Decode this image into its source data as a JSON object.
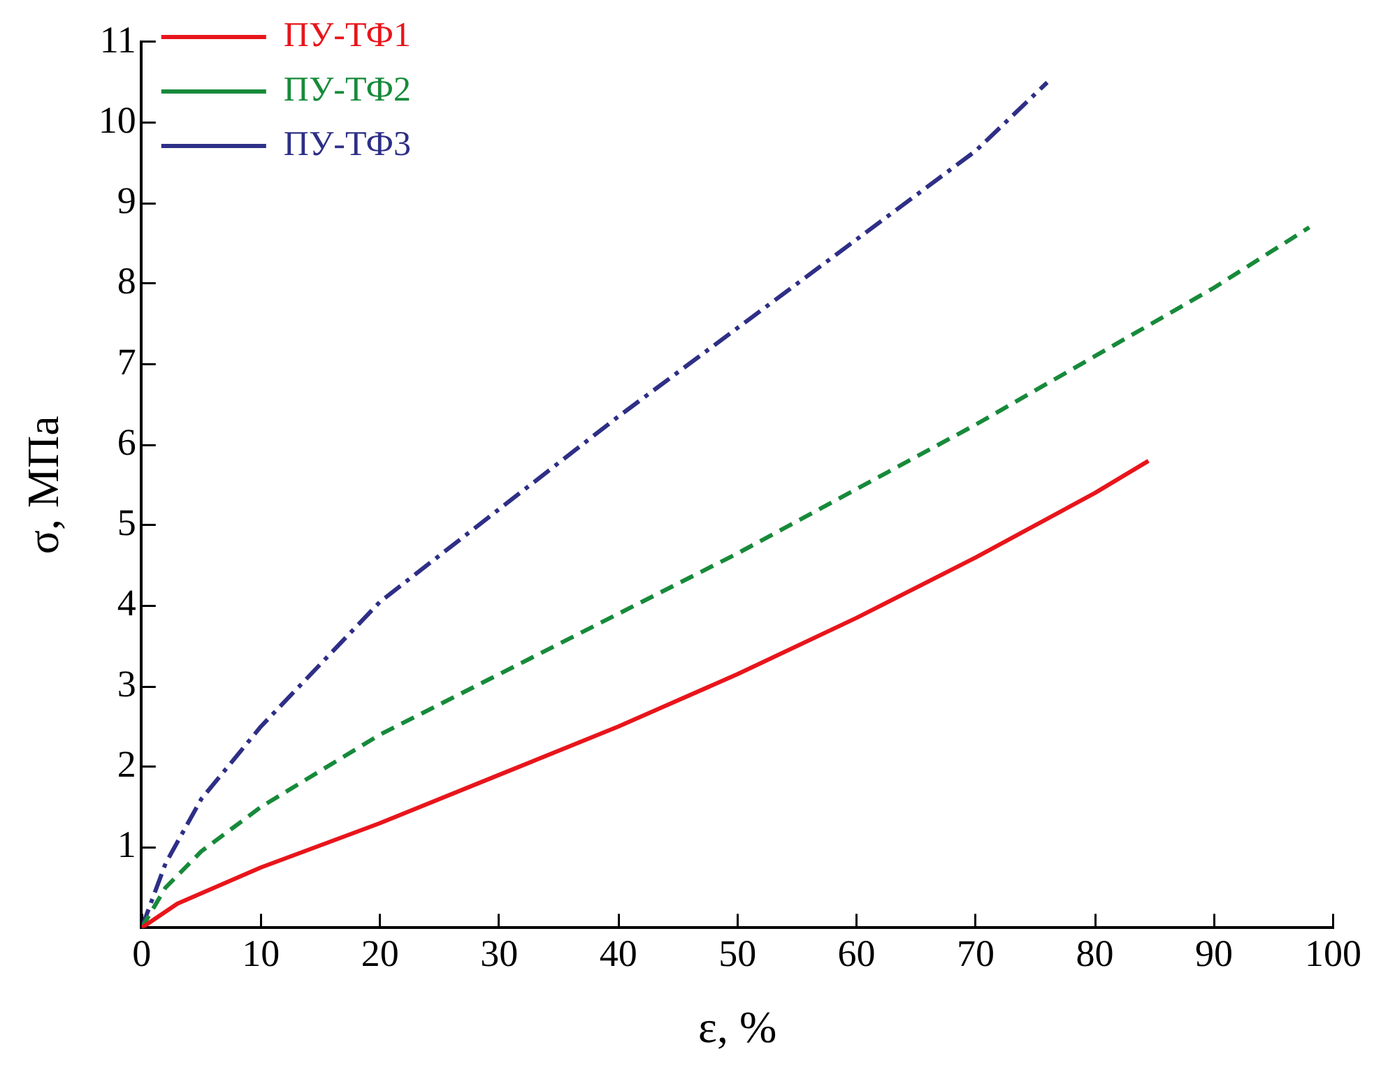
{
  "chart_data": {
    "type": "line",
    "xlabel": "ε, %",
    "ylabel": "σ, МПа",
    "xlim": [
      0,
      100
    ],
    "ylim": [
      0,
      11
    ],
    "xticks": [
      0,
      10,
      20,
      30,
      40,
      50,
      60,
      70,
      80,
      90,
      100
    ],
    "yticks": [
      {
        "value": 0,
        "label": null
      },
      1,
      2,
      3,
      4,
      5,
      6,
      7,
      8,
      9,
      10,
      11
    ],
    "grid": false,
    "legend": "top left",
    "marker": "none",
    "series": [
      {
        "name": "ПУ-ТФ1",
        "color": "#e8151b",
        "line_style": "solid",
        "x": [
          0,
          3,
          10,
          20,
          30,
          40,
          50,
          60,
          70,
          80,
          84.5
        ],
        "values": [
          0,
          0.3,
          0.75,
          1.3,
          1.9,
          2.5,
          3.15,
          3.85,
          4.6,
          5.4,
          5.8
        ]
      },
      {
        "name": "ПУ-ТФ2",
        "color": "#178a3a",
        "line_style": "dashed",
        "x": [
          0,
          2,
          5,
          10,
          20,
          30,
          40,
          50,
          60,
          70,
          80,
          90,
          98
        ],
        "values": [
          0,
          0.5,
          0.95,
          1.5,
          2.4,
          3.15,
          3.9,
          4.65,
          5.45,
          6.25,
          7.1,
          7.95,
          8.7
        ]
      },
      {
        "name": "ПУ-ТФ3",
        "color": "#2e2f86",
        "line_style": "dashdot",
        "x": [
          0,
          2,
          5,
          10,
          20,
          30,
          40,
          50,
          60,
          70,
          76
        ],
        "values": [
          0,
          0.8,
          1.6,
          2.5,
          4.05,
          5.2,
          6.35,
          7.45,
          8.55,
          9.65,
          10.5
        ]
      }
    ]
  }
}
